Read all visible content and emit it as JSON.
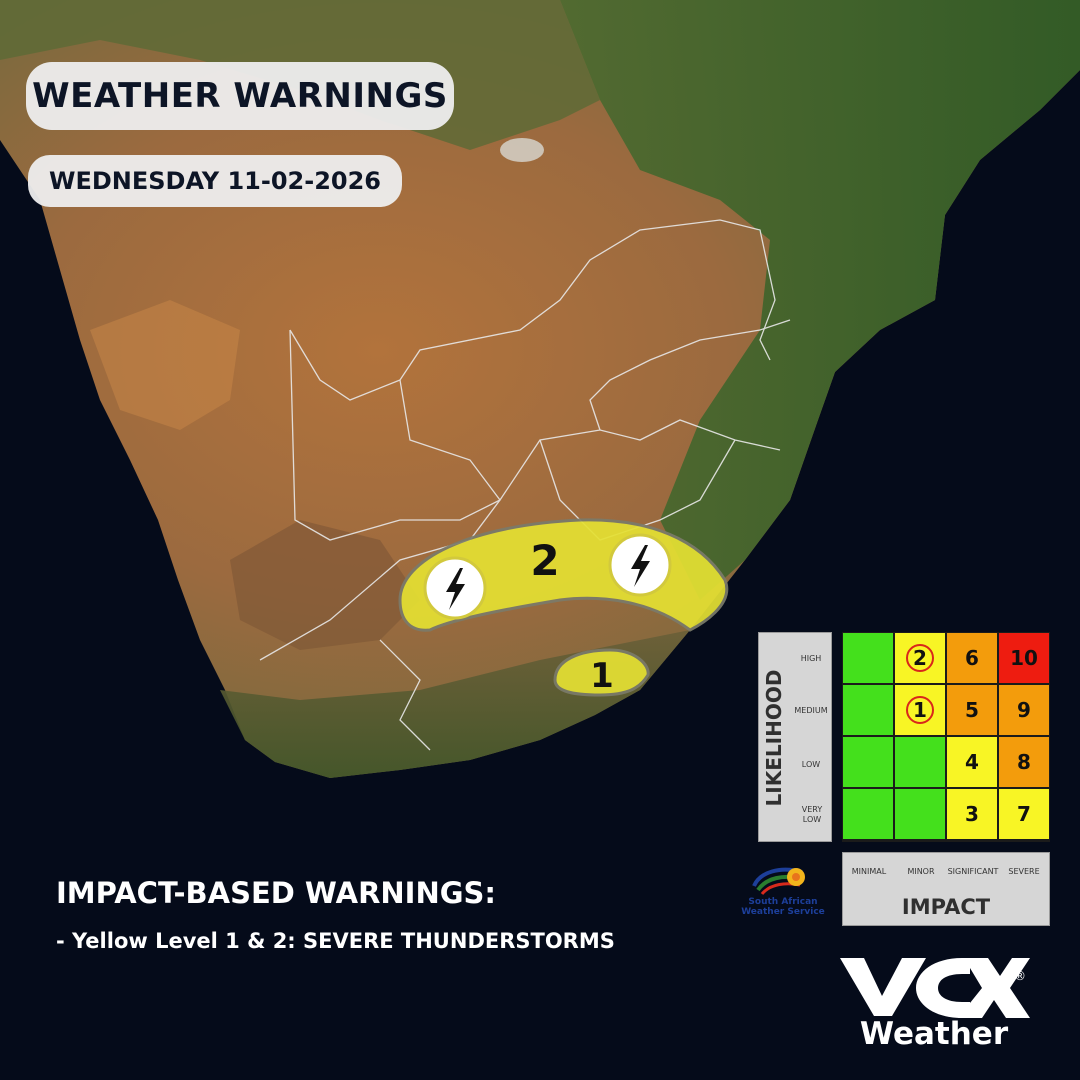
{
  "header": {
    "title": "WEATHER WARNINGS",
    "date": "WEDNESDAY 11-02-2026"
  },
  "warning_areas": [
    {
      "level_label": "2",
      "color": "#e5e133",
      "icon": "thunderstorm-icon"
    },
    {
      "level_label": "1",
      "color": "#e5e133",
      "icon": ""
    }
  ],
  "footer": {
    "heading": "IMPACT-BASED WARNINGS:",
    "line": "- Yellow Level 1 & 2: SEVERE THUNDERSTORMS"
  },
  "matrix": {
    "likelihood_title": "LIKELIHOOD",
    "likelihood_levels": [
      "HIGH",
      "MEDIUM",
      "LOW",
      "VERY LOW"
    ],
    "impact_title": "IMPACT",
    "impact_levels": [
      "MINIMAL",
      "MINOR",
      "SIGNIFICANT",
      "SEVERE"
    ],
    "cells": [
      [
        "",
        "2",
        "6",
        "10"
      ],
      [
        "",
        "1",
        "5",
        "9"
      ],
      [
        "",
        "",
        "4",
        "8"
      ],
      [
        "",
        "",
        "3",
        "7"
      ]
    ],
    "cell_colors": [
      [
        "#44e01c",
        "#f8f525",
        "#f39c0c",
        "#ee1c10"
      ],
      [
        "#44e01c",
        "#f8f525",
        "#f39c0c",
        "#f39c0c"
      ],
      [
        "#44e01c",
        "#44e01c",
        "#f8f525",
        "#f39c0c"
      ],
      [
        "#44e01c",
        "#44e01c",
        "#f8f525",
        "#f8f525"
      ]
    ],
    "circled": [
      "2",
      "1"
    ]
  },
  "logos": {
    "saws": "South African Weather Service",
    "vox_mark": "vox",
    "vox_sub": "Weather",
    "registered": "®"
  },
  "colors": {
    "ocean": "#050b1a",
    "warning_yellow": "#e5e133",
    "pill_bg": "#eeeeee",
    "text_dark": "#0d1526"
  }
}
